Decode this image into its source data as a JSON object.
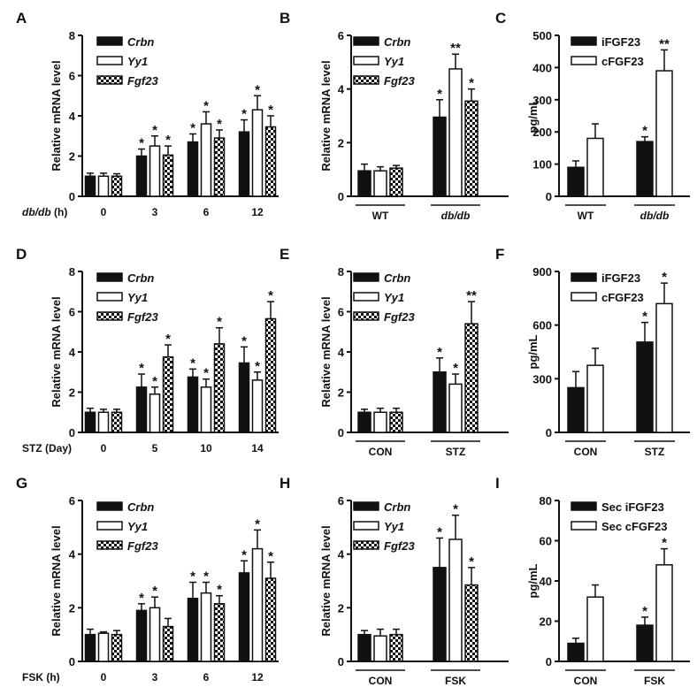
{
  "chart_data": [
    {
      "panel": "A",
      "type": "bar",
      "ylabel": "Relative mRNA level",
      "xlabel": "db/db (h)",
      "xlabel_italic_part": "db/db",
      "ylim": [
        0,
        8
      ],
      "yticks": [
        0,
        2,
        4,
        6,
        8
      ],
      "categories": [
        "0",
        "3",
        "6",
        "12"
      ],
      "bracket": false,
      "series": [
        {
          "name": "Crbn",
          "style": "black",
          "values": [
            1.0,
            2.0,
            2.7,
            3.2
          ],
          "errors": [
            0.15,
            0.35,
            0.4,
            0.6
          ],
          "sig": [
            "",
            "*",
            "*",
            "*"
          ]
        },
        {
          "name": "Yy1",
          "style": "white",
          "values": [
            1.0,
            2.5,
            3.6,
            4.3
          ],
          "errors": [
            0.15,
            0.5,
            0.6,
            0.7
          ],
          "sig": [
            "",
            "*",
            "*",
            "*"
          ]
        },
        {
          "name": "Fgf23",
          "style": "checker",
          "values": [
            1.0,
            2.05,
            2.9,
            3.45
          ],
          "errors": [
            0.12,
            0.45,
            0.4,
            0.55
          ],
          "sig": [
            "",
            "*",
            "*",
            "*"
          ]
        }
      ]
    },
    {
      "panel": "B",
      "type": "bar",
      "ylabel": "Relative mRNA level",
      "xlabel": "",
      "ylim": [
        0,
        6
      ],
      "yticks": [
        0,
        2,
        4,
        6
      ],
      "categories": [
        "WT",
        "db/db"
      ],
      "bracket": true,
      "series": [
        {
          "name": "Crbn",
          "style": "black",
          "values": [
            0.95,
            2.95
          ],
          "errors": [
            0.25,
            0.65
          ],
          "sig": [
            "",
            "*"
          ]
        },
        {
          "name": "Yy1",
          "style": "white",
          "values": [
            0.95,
            4.75
          ],
          "errors": [
            0.15,
            0.55
          ],
          "sig": [
            "",
            "**"
          ]
        },
        {
          "name": "Fgf23",
          "style": "checker",
          "values": [
            1.05,
            3.55
          ],
          "errors": [
            0.1,
            0.45
          ],
          "sig": [
            "",
            "*"
          ]
        }
      ]
    },
    {
      "panel": "C",
      "type": "bar",
      "ylabel": "pg/mL",
      "xlabel": "",
      "ylim": [
        0,
        500
      ],
      "yticks": [
        0,
        100,
        200,
        300,
        400,
        500
      ],
      "categories": [
        "WT",
        "db/db"
      ],
      "bracket": true,
      "series": [
        {
          "name": "iFGF23",
          "style": "black",
          "values": [
            90,
            170
          ],
          "errors": [
            20,
            15
          ],
          "sig": [
            "",
            "*"
          ]
        },
        {
          "name": "cFGF23",
          "style": "white",
          "values": [
            180,
            390
          ],
          "errors": [
            45,
            65
          ],
          "sig": [
            "",
            "**"
          ]
        }
      ]
    },
    {
      "panel": "D",
      "type": "bar",
      "ylabel": "Relative mRNA level",
      "xlabel": "STZ (Day)",
      "ylim": [
        0,
        8
      ],
      "yticks": [
        0,
        2,
        4,
        6,
        8
      ],
      "categories": [
        "0",
        "5",
        "10",
        "14"
      ],
      "bracket": false,
      "series": [
        {
          "name": "Crbn",
          "style": "black",
          "values": [
            1.0,
            2.25,
            2.75,
            3.45
          ],
          "errors": [
            0.2,
            0.65,
            0.4,
            0.8
          ],
          "sig": [
            "",
            "*",
            "*",
            "*"
          ]
        },
        {
          "name": "Yy1",
          "style": "white",
          "values": [
            1.0,
            1.9,
            2.25,
            2.6
          ],
          "errors": [
            0.15,
            0.35,
            0.4,
            0.4
          ],
          "sig": [
            "",
            "*",
            "*",
            "*"
          ]
        },
        {
          "name": "Fgf23",
          "style": "checker",
          "values": [
            1.0,
            3.75,
            4.4,
            5.65
          ],
          "errors": [
            0.15,
            0.6,
            0.8,
            0.85
          ],
          "sig": [
            "",
            "*",
            "*",
            "*"
          ]
        }
      ]
    },
    {
      "panel": "E",
      "type": "bar",
      "ylabel": "Relative mRNA level",
      "xlabel": "",
      "ylim": [
        0,
        8
      ],
      "yticks": [
        0,
        2,
        4,
        6,
        8
      ],
      "categories": [
        "CON",
        "STZ"
      ],
      "bracket": true,
      "series": [
        {
          "name": "Crbn",
          "style": "black",
          "values": [
            1.0,
            3.0
          ],
          "errors": [
            0.15,
            0.7
          ],
          "sig": [
            "",
            "*"
          ]
        },
        {
          "name": "Yy1",
          "style": "white",
          "values": [
            1.0,
            2.4
          ],
          "errors": [
            0.2,
            0.5
          ],
          "sig": [
            "",
            "*"
          ]
        },
        {
          "name": "Fgf23",
          "style": "checker",
          "values": [
            1.0,
            5.4
          ],
          "errors": [
            0.2,
            1.1
          ],
          "sig": [
            "",
            "**"
          ]
        }
      ]
    },
    {
      "panel": "F",
      "type": "bar",
      "ylabel": "pg/mL",
      "xlabel": "",
      "ylim": [
        0,
        900
      ],
      "yticks": [
        0,
        300,
        600,
        900
      ],
      "categories": [
        "CON",
        "STZ"
      ],
      "bracket": true,
      "series": [
        {
          "name": "iFGF23",
          "style": "black",
          "values": [
            250,
            505
          ],
          "errors": [
            90,
            110
          ],
          "sig": [
            "",
            "*"
          ]
        },
        {
          "name": "cFGF23",
          "style": "white",
          "values": [
            375,
            720
          ],
          "errors": [
            95,
            115
          ],
          "sig": [
            "",
            "*"
          ]
        }
      ]
    },
    {
      "panel": "G",
      "type": "bar",
      "ylabel": "Relative mRNA level",
      "xlabel": "FSK (h)",
      "ylim": [
        0,
        6
      ],
      "yticks": [
        0,
        2,
        4,
        6
      ],
      "categories": [
        "0",
        "3",
        "6",
        "12"
      ],
      "bracket": false,
      "series": [
        {
          "name": "Crbn",
          "style": "black",
          "values": [
            1.0,
            1.9,
            2.35,
            3.3
          ],
          "errors": [
            0.2,
            0.25,
            0.6,
            0.45
          ],
          "sig": [
            "",
            "*",
            "*",
            "*"
          ]
        },
        {
          "name": "Yy1",
          "style": "white",
          "values": [
            1.05,
            2.0,
            2.55,
            4.2
          ],
          "errors": [
            0.05,
            0.4,
            0.4,
            0.7
          ],
          "sig": [
            "",
            "*",
            "*",
            "*"
          ]
        },
        {
          "name": "Fgf23",
          "style": "checker",
          "values": [
            1.0,
            1.3,
            2.15,
            3.1
          ],
          "errors": [
            0.15,
            0.3,
            0.3,
            0.6
          ],
          "sig": [
            "",
            "",
            "*",
            "*"
          ]
        }
      ]
    },
    {
      "panel": "H",
      "type": "bar",
      "ylabel": "Relative mRNA level",
      "xlabel": "",
      "ylim": [
        0,
        6
      ],
      "yticks": [
        0,
        2,
        4,
        6
      ],
      "categories": [
        "CON",
        "FSK"
      ],
      "bracket": true,
      "series": [
        {
          "name": "Crbn",
          "style": "black",
          "values": [
            1.0,
            3.5
          ],
          "errors": [
            0.15,
            1.1
          ],
          "sig": [
            "",
            "*"
          ]
        },
        {
          "name": "Yy1",
          "style": "white",
          "values": [
            0.95,
            4.55
          ],
          "errors": [
            0.25,
            0.9
          ],
          "sig": [
            "",
            "*"
          ]
        },
        {
          "name": "Fgf23",
          "style": "checker",
          "values": [
            1.0,
            2.85
          ],
          "errors": [
            0.2,
            0.65
          ],
          "sig": [
            "",
            "*"
          ]
        }
      ]
    },
    {
      "panel": "I",
      "type": "bar",
      "ylabel": "pg/mL",
      "xlabel": "",
      "ylim": [
        0,
        80
      ],
      "yticks": [
        0,
        20,
        40,
        60,
        80
      ],
      "categories": [
        "CON",
        "FSK"
      ],
      "bracket": true,
      "series": [
        {
          "name": "Sec iFGF23",
          "style": "black",
          "values": [
            9,
            18
          ],
          "errors": [
            2.5,
            4
          ],
          "sig": [
            "",
            "*"
          ]
        },
        {
          "name": "Sec cFGF23",
          "style": "white",
          "values": [
            32,
            48
          ],
          "errors": [
            6,
            8
          ],
          "sig": [
            "",
            "*"
          ]
        }
      ]
    }
  ]
}
